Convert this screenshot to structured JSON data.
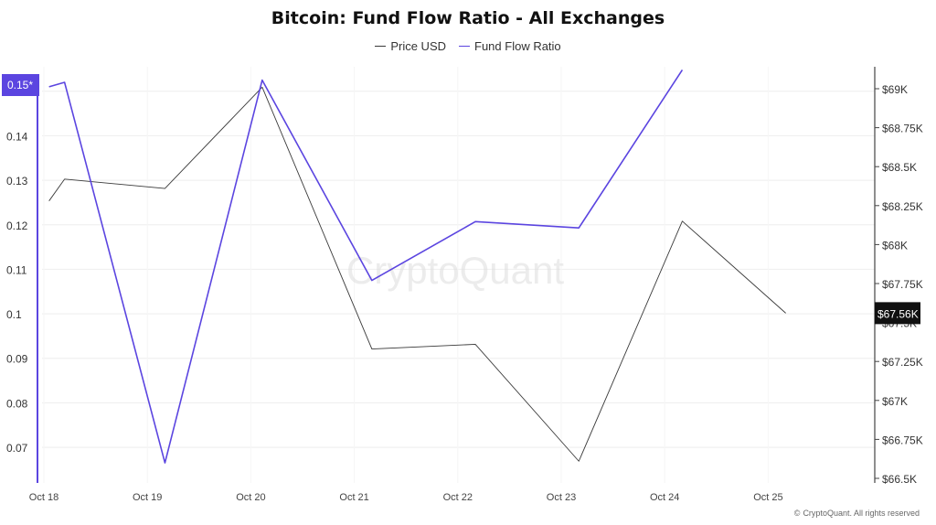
{
  "title": "Bitcoin: Fund Flow Ratio - All Exchanges",
  "watermark": "CryptoQuant",
  "copyright": "CryptoQuant. All rights reserved",
  "copyright_symbol": "©",
  "colors": {
    "price": "#3a3a3a",
    "ratio": "#5b45e0",
    "grid": "#eeeeee",
    "right_axis": "#444444",
    "badge_bg": "#111111"
  },
  "chart_data": {
    "type": "line",
    "title": "Bitcoin: Fund Flow Ratio - All Exchanges",
    "legend_position": "top-center",
    "x_ticks": [
      "Oct 18",
      "Oct 19",
      "Oct 20",
      "Oct 21",
      "Oct 22",
      "Oct 23",
      "Oct 24",
      "Oct 25"
    ],
    "x_range": [
      0,
      8.12
    ],
    "left_axis": {
      "ticks": [
        "0.07",
        "0.08",
        "0.09",
        "0.1",
        "0.11",
        "0.12",
        "0.13",
        "0.14",
        "0.15"
      ],
      "range": [
        0.062,
        0.1555
      ],
      "last_value_badge": "0.15*"
    },
    "right_axis": {
      "ticks": [
        "$66.5K",
        "$66.75K",
        "$67K",
        "$67.25K",
        "$67.5K",
        "$67.75K",
        "$68K",
        "$68.25K",
        "$68.5K",
        "$68.75K",
        "$69K"
      ],
      "range": [
        66.5,
        69.0
      ],
      "unit": "thousand USD",
      "last_value_badge": "$67.56K"
    },
    "grid": true,
    "series": [
      {
        "name": "Price USD",
        "axis": "right",
        "points": [
          [
            0.05,
            68.28
          ],
          [
            0.2,
            68.42
          ],
          [
            1.17,
            68.36
          ],
          [
            2.11,
            69.01
          ],
          [
            3.17,
            67.33
          ],
          [
            4.17,
            67.36
          ],
          [
            5.17,
            66.61
          ],
          [
            6.17,
            68.15
          ],
          [
            7.17,
            67.56
          ]
        ]
      },
      {
        "name": "Fund Flow Ratio",
        "axis": "left",
        "points": [
          [
            0.05,
            0.151
          ],
          [
            0.2,
            0.152
          ],
          [
            1.17,
            0.0665
          ],
          [
            2.11,
            0.1525
          ],
          [
            3.17,
            0.1075
          ],
          [
            4.17,
            0.1207
          ],
          [
            5.17,
            0.1193
          ],
          [
            6.17,
            0.1548
          ]
        ]
      }
    ]
  }
}
